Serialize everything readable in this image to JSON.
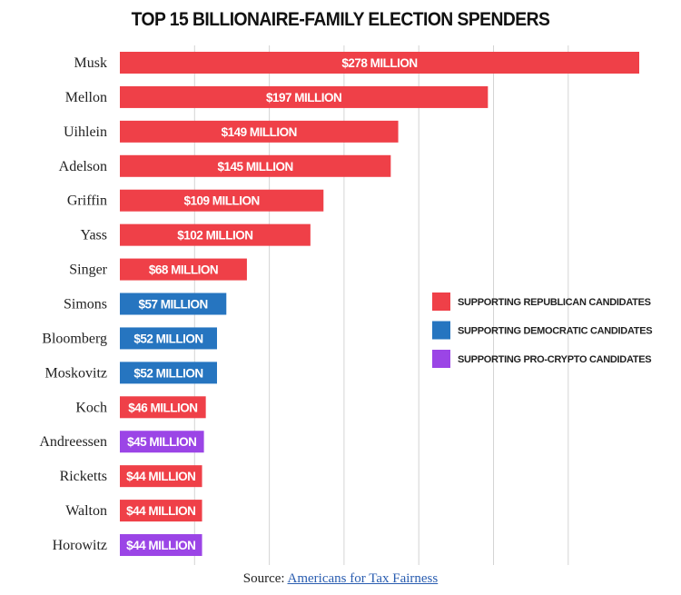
{
  "chart_data": {
    "type": "bar",
    "orientation": "horizontal",
    "title": "TOP 15 BILLIONAIRE-FAMILY ELECTION SPENDERS",
    "categories": [
      "Musk",
      "Mellon",
      "Uihlein",
      "Adelson",
      "Griffin",
      "Yass",
      "Singer",
      "Simons",
      "Bloomberg",
      "Moskovitz",
      "Koch",
      "Andreessen",
      "Ricketts",
      "Walton",
      "Horowitz"
    ],
    "values": [
      278,
      197,
      149,
      145,
      109,
      102,
      68,
      57,
      52,
      52,
      46,
      45,
      44,
      44,
      44
    ],
    "unit": "million USD",
    "data_labels": [
      "$278 MILLION",
      "$197 MILLION",
      "$149 MILLION",
      "$145 MILLION",
      "$109 MILLION",
      "$102 MILLION",
      "$68 MILLION",
      "$57 MILLION",
      "$52 MILLION",
      "$52 MILLION",
      "$46 MILLION",
      "$45 MILLION",
      "$44 MILLION",
      "$44 MILLION",
      "$44 MILLION"
    ],
    "groups": [
      "republican",
      "republican",
      "republican",
      "republican",
      "republican",
      "republican",
      "republican",
      "democratic",
      "democratic",
      "democratic",
      "republican",
      "crypto",
      "republican",
      "republican",
      "crypto"
    ],
    "legend": [
      {
        "key": "republican",
        "label": "SUPPORTING REPUBLICAN CANDIDATES",
        "color": "#ef4048"
      },
      {
        "key": "democratic",
        "label": "SUPPORTING DEMOCRATIC CANDIDATES",
        "color": "#2675c0"
      },
      {
        "key": "crypto",
        "label": "SUPPORTING PRO-CRYPTO CANDIDATES",
        "color": "#9b45e6"
      }
    ],
    "legend_position": "right",
    "xlim": [
      0,
      280
    ],
    "grid": true,
    "grid_step": 40,
    "xlabel": "",
    "ylabel": ""
  },
  "source": {
    "prefix": "Source: ",
    "link_text": "Americans for Tax Fairness"
  }
}
